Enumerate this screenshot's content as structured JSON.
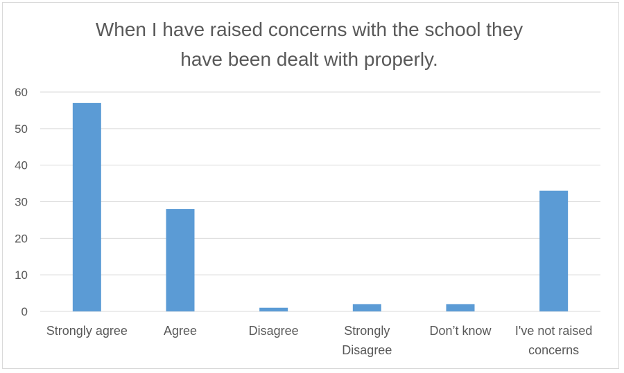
{
  "chart_data": {
    "type": "bar",
    "title_lines": [
      "When I have raised concerns with the school they",
      "have been dealt with properly."
    ],
    "categories": [
      [
        "Strongly agree"
      ],
      [
        "Agree"
      ],
      [
        "Disagree"
      ],
      [
        "Strongly",
        "Disagree"
      ],
      [
        "Don’t know"
      ],
      [
        "I've not raised",
        "concerns"
      ]
    ],
    "values": [
      57,
      28,
      1,
      2,
      2,
      33
    ],
    "ylim": [
      0,
      60
    ],
    "yticks": [
      0,
      10,
      20,
      30,
      40,
      50,
      60
    ],
    "grid": true,
    "legend": "none",
    "bar_color": "#5b9bd5"
  }
}
